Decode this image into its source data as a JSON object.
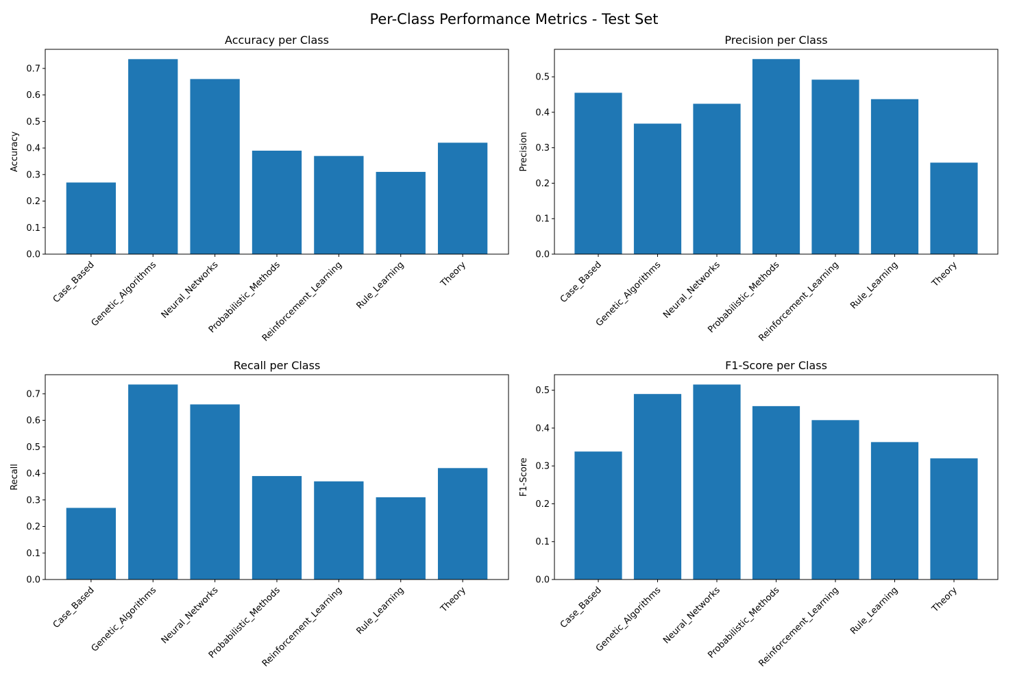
{
  "suptitle": "Per-Class Performance Metrics - Test Set",
  "bar_color": "#1f77b4",
  "chart_data": [
    {
      "type": "bar",
      "title": "Accuracy per Class",
      "xlabel": "",
      "ylabel": "Accuracy",
      "categories": [
        "Case_Based",
        "Genetic_Algorithms",
        "Neural_Networks",
        "Probabilistic_Methods",
        "Reinforcement_Learning",
        "Rule_Learning",
        "Theory"
      ],
      "values": [
        0.27,
        0.735,
        0.66,
        0.39,
        0.37,
        0.31,
        0.42
      ],
      "ylim": [
        0,
        0.772
      ],
      "yticks": [
        "0.0",
        "0.1",
        "0.2",
        "0.3",
        "0.4",
        "0.5",
        "0.6",
        "0.7"
      ],
      "grid": false,
      "legend": "none"
    },
    {
      "type": "bar",
      "title": "Precision per Class",
      "xlabel": "",
      "ylabel": "Precision",
      "categories": [
        "Case_Based",
        "Genetic_Algorithms",
        "Neural_Networks",
        "Probabilistic_Methods",
        "Reinforcement_Learning",
        "Rule_Learning",
        "Theory"
      ],
      "values": [
        0.455,
        0.368,
        0.424,
        0.55,
        0.492,
        0.437,
        0.258
      ],
      "ylim": [
        0,
        0.5775
      ],
      "yticks": [
        "0.0",
        "0.1",
        "0.2",
        "0.3",
        "0.4",
        "0.5"
      ],
      "grid": false,
      "legend": "none"
    },
    {
      "type": "bar",
      "title": "Recall per Class",
      "xlabel": "",
      "ylabel": "Recall",
      "categories": [
        "Case_Based",
        "Genetic_Algorithms",
        "Neural_Networks",
        "Probabilistic_Methods",
        "Reinforcement_Learning",
        "Rule_Learning",
        "Theory"
      ],
      "values": [
        0.27,
        0.735,
        0.66,
        0.39,
        0.37,
        0.31,
        0.42
      ],
      "ylim": [
        0,
        0.772
      ],
      "yticks": [
        "0.0",
        "0.1",
        "0.2",
        "0.3",
        "0.4",
        "0.5",
        "0.6",
        "0.7"
      ],
      "grid": false,
      "legend": "none"
    },
    {
      "type": "bar",
      "title": "F1-Score per Class",
      "xlabel": "",
      "ylabel": "F1-Score",
      "categories": [
        "Case_Based",
        "Genetic_Algorithms",
        "Neural_Networks",
        "Probabilistic_Methods",
        "Reinforcement_Learning",
        "Rule_Learning",
        "Theory"
      ],
      "values": [
        0.338,
        0.49,
        0.515,
        0.458,
        0.421,
        0.363,
        0.32
      ],
      "ylim": [
        0,
        0.541
      ],
      "yticks": [
        "0.0",
        "0.1",
        "0.2",
        "0.3",
        "0.4",
        "0.5"
      ],
      "grid": false,
      "legend": "none"
    }
  ]
}
